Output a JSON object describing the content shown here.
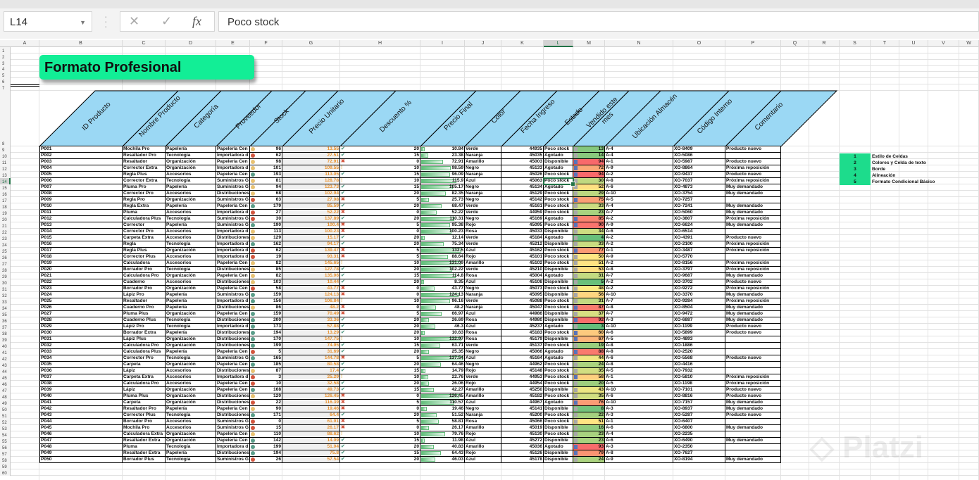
{
  "formula_bar": {
    "name_box": "L14",
    "cancel_icon": "✕",
    "enter_icon": "✓",
    "fx_label": "fx",
    "value": "Poco stock"
  },
  "columns": [
    "A",
    "B",
    "C",
    "D",
    "E",
    "F",
    "G",
    "H",
    "I",
    "J",
    "K",
    "L",
    "M",
    "N",
    "O",
    "P",
    "Q",
    "R",
    "S",
    "T",
    "U",
    "V",
    "W"
  ],
  "title": "Formato Profesional",
  "table": {
    "headers": [
      "ID Producto",
      "Nombre Producto",
      "Categoría",
      "Proveedor",
      "Stock",
      "Precio Unitario",
      "Descuento %",
      "Precio Final",
      "Color",
      "Fecha Ingreso",
      "Estado",
      "Vendido este mes",
      "Ubicación Almacén",
      "Código Interno",
      "Comentario"
    ],
    "rows": [
      [
        "P001",
        "Mochila Pro",
        "Papelería",
        "Papelería Cen",
        96,
        13.55,
        20,
        10.84,
        "Verde",
        44935,
        "Poco stock",
        13,
        "A-4",
        "XO-8409",
        "Producto nuevo"
      ],
      [
        "P002",
        "Resaltador Pro",
        "Tecnología",
        "Importadora d",
        62,
        27.51,
        15,
        23.38,
        "Naranja",
        45035,
        "Agotado",
        14,
        "A-4",
        "XO-5086",
        ""
      ],
      [
        "P003",
        "Resaltador",
        "Organización",
        "Papelería Cen",
        98,
        72.91,
        0,
        72.91,
        "Amarillo",
        45003,
        "Disponible",
        94,
        "A-1",
        "XO-5987",
        "Producto nuevo"
      ],
      [
        "P004",
        "Corrector Extra",
        "Organización",
        "Importadora d",
        101,
        109.55,
        10,
        98.59,
        "Negro",
        45133,
        "Agotado",
        72,
        "A-9",
        "XO-8864",
        "Próxima reposición"
      ],
      [
        "P005",
        "Regla Plus",
        "Accesorios",
        "Papelería Cen",
        193,
        113.05,
        15,
        96.09,
        "Naranja",
        45026,
        "Poco stock",
        94,
        "A-2",
        "XO-9437",
        "Producto nuevo"
      ],
      [
        "P006",
        "Corrector Extra",
        "Tecnología",
        "Suministros G",
        81,
        128.78,
        10,
        115.9,
        "Azul",
        45063,
        "Poco stock",
        30,
        "A-8",
        "XO-7037",
        "Próxima reposición"
      ],
      [
        "P007",
        "Pluma Pro",
        "Papelería",
        "Suministros G",
        94,
        123.73,
        15,
        105.17,
        "Negro",
        45134,
        "Agotado",
        52,
        "A-6",
        "XO-4873",
        "Muy demandado"
      ],
      [
        "P008",
        "Corrector Pro",
        "Accesorios",
        "Distribuciones",
        68,
        102.94,
        20,
        82.35,
        "Naranja",
        45129,
        "Poco stock",
        29,
        "A-10",
        "XO-3754",
        "Muy demandado"
      ],
      [
        "P009",
        "Regla Pro",
        "Organización",
        "Suministros G",
        63,
        27.08,
        5,
        25.73,
        "Negro",
        45142,
        "Poco stock",
        75,
        "A-5",
        "XO-7257",
        ""
      ],
      [
        "P010",
        "Regla Extra",
        "Papelería",
        "Papelería Cen",
        179,
        85.59,
        20,
        68.47,
        "Verde",
        45161,
        "Poco stock",
        33,
        "A-4",
        "XO-7241",
        "Muy demandado"
      ],
      [
        "P011",
        "Pluma",
        "Accesorios",
        "Importadora d",
        27,
        52.22,
        0,
        52.22,
        "Verde",
        44959,
        "Poco stock",
        23,
        "A-7",
        "XO-5060",
        "Muy demandado"
      ],
      [
        "P012",
        "Calculadora Plus",
        "Tecnología",
        "Suministros G",
        30,
        137.89,
        20,
        110.31,
        "Negro",
        45169,
        "Agotado",
        85,
        "A-2",
        "XO-3807",
        "Próxima reposición"
      ],
      [
        "P013",
        "Corrector",
        "Papelería",
        "Suministros G",
        190,
        100.4,
        5,
        95.38,
        "Rojo",
        45095,
        "Poco stock",
        90,
        "A-9",
        "XO-6624",
        "Muy demandado"
      ],
      [
        "P014",
        "Corrector Pro",
        "Accesorios",
        "Importadora d",
        113,
        100.23,
        0,
        100.23,
        "Rosa",
        45033,
        "Disponible",
        34,
        "A-6",
        "XO-6514",
        ""
      ],
      [
        "P015",
        "Carpeta Extra",
        "Accesorios",
        "Distribuciones",
        129,
        15.17,
        20,
        12.14,
        "Verde",
        45184,
        "Agotado",
        4,
        "A-2",
        "XO-4391",
        "Producto nuevo"
      ],
      [
        "P016",
        "Regla",
        "Tecnología",
        "Importadora d",
        162,
        94.17,
        20,
        75.34,
        "Verde",
        45212,
        "Disponible",
        33,
        "A-2",
        "XO-2100",
        "Próxima reposición"
      ],
      [
        "P017",
        "Regla Plus",
        "Organización",
        "Importadora d",
        62,
        139.47,
        5,
        132.5,
        "Azul",
        45162,
        "Poco stock",
        77,
        "A-1",
        "XO-3487",
        "Próxima reposición"
      ],
      [
        "P018",
        "Corrector Plus",
        "Accesorios",
        "Importadora d",
        19,
        93.31,
        5,
        88.64,
        "Rojo",
        45101,
        "Poco stock",
        50,
        "A-9",
        "XO-5770",
        ""
      ],
      [
        "P019",
        "Calculadora",
        "Accesorios",
        "Papelería Cen",
        82,
        145.65,
        10,
        131.09,
        "Amarillo",
        45102,
        "Poco stock",
        51,
        "A-2",
        "XO-8156",
        "Próxima reposición"
      ],
      [
        "P020",
        "Borrador Pro",
        "Tecnología",
        "Distribuciones",
        85,
        127.78,
        20,
        102.22,
        "Verde",
        45210,
        "Disponible",
        53,
        "A-8",
        "XO-3797",
        "Próxima reposición"
      ],
      [
        "P021",
        "Calculadora Pro",
        "Organización",
        "Papelería Cen",
        82,
        135.06,
        15,
        114.8,
        "Rosa",
        45004,
        "Agotado",
        31,
        "A-7",
        "XO-9687",
        "Muy demandado"
      ],
      [
        "P022",
        "Cuaderno",
        "Accesorios",
        "Distribuciones",
        103,
        10.44,
        20,
        8.35,
        "Azul",
        45108,
        "Disponible",
        5,
        "A-2",
        "XO-3702",
        "Producto nuevo"
      ],
      [
        "P023",
        "Borrador Pro",
        "Organización",
        "Papelería Cen",
        58,
        43.77,
        0,
        43.77,
        "Negro",
        45073,
        "Poco stock",
        48,
        "A-2",
        "XO-9272",
        "Próxima reposición"
      ],
      [
        "P024",
        "Lápiz Pro",
        "Papelería",
        "Suministros G",
        159,
        124.13,
        0,
        124.13,
        "Naranja",
        45095,
        "Disponible",
        56,
        "A-10",
        "XO-3370",
        "Muy demandado"
      ],
      [
        "P025",
        "Resaltador",
        "Papelería",
        "Importadora d",
        156,
        106.84,
        10,
        96.16,
        "Verde",
        45088,
        "Poco stock",
        31,
        "A-7",
        "XO-9284",
        "Próxima reposición"
      ],
      [
        "P026",
        "Cuaderno Pro",
        "Papelería",
        "Distribuciones",
        86,
        48.2,
        0,
        48.2,
        "Naranja",
        45047,
        "Poco stock",
        87,
        "A-8",
        "XO-8504",
        "Muy demandado"
      ],
      [
        "P027",
        "Pluma Plus",
        "Organización",
        "Papelería Cen",
        159,
        70.49,
        5,
        66.97,
        "Azul",
        44986,
        "Disponible",
        37,
        "A-7",
        "XO-9472",
        "Muy demandado"
      ],
      [
        "P028",
        "Cuaderno Plus",
        "Tecnología",
        "Distribuciones",
        200,
        33.36,
        20,
        26.69,
        "Rosa",
        44980,
        "Disponible",
        92,
        "A-3",
        "XO-6887",
        "Muy demandado"
      ],
      [
        "P029",
        "Lápiz Pro",
        "Tecnología",
        "Importadora d",
        173,
        57.88,
        20,
        46.3,
        "Azul",
        45237,
        "Agotado",
        3,
        "A-10",
        "XO-1199",
        "Producto nuevo"
      ],
      [
        "P030",
        "Borrador Extra",
        "Papelería",
        "Distribuciones",
        194,
        13.29,
        20,
        10.63,
        "Rosa",
        45183,
        "Poco stock",
        60,
        "A-6",
        "XO-5899",
        "Producto nuevo"
      ],
      [
        "P031",
        "Lápiz Plus",
        "Organización",
        "Distribuciones",
        170,
        147.75,
        10,
        132.97,
        "Rosa",
        45179,
        "Disponible",
        67,
        "A-5",
        "XO-4893",
        ""
      ],
      [
        "P032",
        "Calculadora Pro",
        "Organización",
        "Distribuciones",
        199,
        74.95,
        15,
        63.71,
        "Verde",
        45137,
        "Poco stock",
        19,
        "A-8",
        "XO-1886",
        ""
      ],
      [
        "P033",
        "Calculadora Plus",
        "Papelería",
        "Papelería Cen",
        5,
        31.69,
        20,
        25.35,
        "Negro",
        45066,
        "Agotado",
        88,
        "A-8",
        "XO-2520",
        ""
      ],
      [
        "P034",
        "Corrector Pro",
        "Tecnología",
        "Suministros G",
        165,
        144.78,
        5,
        137.54,
        "Azul",
        45164,
        "Agotado",
        44,
        "A-6",
        "XO-5568",
        "Producto nuevo"
      ],
      [
        "P035",
        "Carpeta",
        "Organización",
        "Papelería Cen",
        185,
        80.58,
        20,
        64.46,
        "Negro",
        44962,
        "Poco stock",
        24,
        "A-8",
        "XO-4416",
        ""
      ],
      [
        "P036",
        "Lápiz",
        "Accesorios",
        "Distribuciones",
        87,
        17.4,
        15,
        14.79,
        "Rojo",
        45148,
        "Poco stock",
        35,
        "A-5",
        "XO-7932",
        ""
      ],
      [
        "P037",
        "Carpeta Extra",
        "Accesorios",
        "Importadora d",
        3,
        25.29,
        10,
        22.76,
        "Verde",
        44953,
        "Poco stock",
        58,
        "A-1",
        "XO-5810",
        "Próxima reposición"
      ],
      [
        "P038",
        "Calculadora Pro",
        "Accesorios",
        "Papelería Cen",
        10,
        32.58,
        20,
        26.06,
        "Rojo",
        44954,
        "Poco stock",
        20,
        "A-5",
        "XO-1198",
        "Próxima reposición"
      ],
      [
        "P039",
        "Lápiz",
        "Organización",
        "Papelería Cen",
        168,
        49.73,
        15,
        42.27,
        "Amarillo",
        45250,
        "Disponible",
        43,
        "A-10",
        "XO-7101",
        "Producto nuevo"
      ],
      [
        "P040",
        "Pluma Plus",
        "Organización",
        "Distribuciones",
        120,
        126.45,
        0,
        126.45,
        "Amarillo",
        45182,
        "Poco stock",
        35,
        "A-6",
        "XO-8816",
        "Producto nuevo"
      ],
      [
        "P041",
        "Carpeta",
        "Organización",
        "Distribuciones",
        22,
        116.39,
        5,
        110.57,
        "Azul",
        44967,
        "Agotado",
        76,
        "A-10",
        "XO-7157",
        "Muy demandado"
      ],
      [
        "P042",
        "Resaltador Pro",
        "Papelería",
        "Papelería Cen",
        90,
        19.46,
        0,
        19.46,
        "Negro",
        45141,
        "Disponible",
        8,
        "A-3",
        "XO-8937",
        "Muy demandado"
      ],
      [
        "P043",
        "Corrector Plus",
        "Tecnología",
        "Distribuciones",
        171,
        64.4,
        20,
        51.52,
        "Naranja",
        45200,
        "Poco stock",
        22,
        "A-3",
        "XO-5287",
        "Producto nuevo"
      ],
      [
        "P044",
        "Borrador Pro",
        "Accesorios",
        "Suministros G",
        0,
        61.91,
        5,
        58.81,
        "Rosa",
        45066,
        "Poco stock",
        51,
        "A-1",
        "XO-6407",
        ""
      ],
      [
        "P045",
        "Mochila Pro",
        "Accesorios",
        "Suministros G",
        15,
        26.17,
        0,
        26.17,
        "Amarillo",
        45019,
        "Disponible",
        16,
        "A-6",
        "XO-6800",
        "Muy demandado"
      ],
      [
        "P046",
        "Calculadora Extra",
        "Organización",
        "Papelería Cen",
        110,
        88.62,
        10,
        79.76,
        "Rojo",
        45130,
        "Poco stock",
        23,
        "A-4",
        "XO-2235",
        ""
      ],
      [
        "P047",
        "Resaltador Extra",
        "Organización",
        "Papelería Cen",
        142,
        14.09,
        15,
        11.98,
        "Azul",
        45272,
        "Disponible",
        23,
        "A-6",
        "XO-6490",
        "Muy demandado"
      ],
      [
        "P048",
        "Pluma",
        "Tecnología",
        "Importadora d",
        199,
        51.04,
        20,
        40.83,
        "Amarillo",
        45036,
        "Agotado",
        93,
        "A-3",
        "XO-2350",
        ""
      ],
      [
        "P049",
        "Resaltador Extra",
        "Papelería",
        "Distribuciones",
        194,
        75.8,
        15,
        64.43,
        "Rojo",
        45126,
        "Disponible",
        79,
        "A-8",
        "XO-7627",
        ""
      ],
      [
        "P050",
        "Borrador Plus",
        "Tecnología",
        "Suministros G",
        26,
        57.54,
        20,
        46.03,
        "Azul",
        45178,
        "Disponible",
        24,
        "A-9",
        "XO-8194",
        "Muy demandado"
      ]
    ]
  },
  "legend": [
    {
      "n": "1",
      "label": "Estilo de Celdas"
    },
    {
      "n": "2",
      "label": "Colores y Celda de texto"
    },
    {
      "n": "3",
      "label": "Borde"
    },
    {
      "n": "4",
      "label": "Alineación"
    },
    {
      "n": "5",
      "label": "Formato Condicional Básico"
    }
  ],
  "watermark": "Platzi",
  "colors": {
    "title_bg": "#12EE96",
    "header_bg": "#9BD8F4",
    "price_text": "#E8912D",
    "icon_green": "#5B9E8A",
    "icon_yellow": "#E8C273",
    "icon_red": "#D2563F",
    "heat_low": "#63BE7B",
    "heat_mid": "#FFEB84",
    "heat_high": "#F8696B"
  }
}
